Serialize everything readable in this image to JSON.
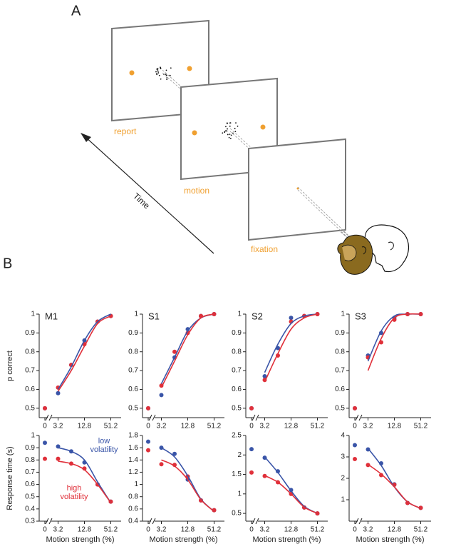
{
  "panels": {
    "a": "A",
    "b": "B"
  },
  "diagram": {
    "screens": [
      "report",
      "motion",
      "fixation"
    ],
    "time_label": "Time"
  },
  "chart_data": [
    {
      "type": "line",
      "title": "M1",
      "y_label": "p correct",
      "categories": [
        "0",
        "3.2",
        null,
        "12.8",
        null,
        "51.2"
      ],
      "ylim": [
        0.45,
        1.0
      ],
      "yticks": [
        0.5,
        0.6,
        0.7,
        0.8,
        0.9,
        1
      ],
      "series": [
        {
          "color": "#3a55a8",
          "mode": "markers",
          "values": [
            0.5,
            0.58,
            0.73,
            0.86,
            0.96,
            0.99
          ]
        },
        {
          "color": "#e0303a",
          "mode": "markers",
          "values": [
            0.5,
            0.61,
            0.73,
            0.84,
            0.96,
            0.99
          ]
        },
        {
          "color": "#3a55a8",
          "mode": "lines",
          "values": [
            null,
            0.6,
            0.72,
            0.86,
            0.96,
            1.0
          ]
        },
        {
          "color": "#e0303a",
          "mode": "lines",
          "values": [
            null,
            0.59,
            0.7,
            0.83,
            0.95,
            0.99
          ]
        }
      ]
    },
    {
      "type": "line",
      "title": "S1",
      "categories": [
        "0",
        "3.2",
        null,
        "12.8",
        null,
        "51.2"
      ],
      "ylim": [
        0.45,
        1.0
      ],
      "yticks": [
        0.5,
        0.6,
        0.7,
        0.8,
        0.9,
        1
      ],
      "series": [
        {
          "color": "#3a55a8",
          "mode": "markers",
          "values": [
            0.5,
            0.57,
            0.77,
            0.92,
            0.99,
            1.0
          ]
        },
        {
          "color": "#e0303a",
          "mode": "markers",
          "values": [
            0.5,
            0.62,
            0.8,
            0.9,
            0.99,
            1.0
          ]
        },
        {
          "color": "#3a55a8",
          "mode": "lines",
          "values": [
            null,
            0.63,
            0.77,
            0.91,
            0.98,
            1.0
          ]
        },
        {
          "color": "#e0303a",
          "mode": "lines",
          "values": [
            null,
            0.61,
            0.75,
            0.89,
            0.98,
            1.0
          ]
        }
      ]
    },
    {
      "type": "line",
      "title": "S2",
      "categories": [
        "0",
        "3.2",
        null,
        "12.8",
        null,
        "51.2"
      ],
      "ylim": [
        0.45,
        1.0
      ],
      "yticks": [
        0.5,
        0.6,
        0.7,
        0.8,
        0.9,
        1
      ],
      "series": [
        {
          "color": "#3a55a8",
          "mode": "markers",
          "values": [
            0.5,
            0.67,
            0.82,
            0.98,
            0.99,
            1.0
          ]
        },
        {
          "color": "#e0303a",
          "mode": "markers",
          "values": [
            0.5,
            0.65,
            0.78,
            0.96,
            0.99,
            1.0
          ]
        },
        {
          "color": "#3a55a8",
          "mode": "lines",
          "values": [
            null,
            0.69,
            0.84,
            0.95,
            0.99,
            1.0
          ]
        },
        {
          "color": "#e0303a",
          "mode": "lines",
          "values": [
            null,
            0.64,
            0.79,
            0.92,
            0.98,
            1.0
          ]
        }
      ]
    },
    {
      "type": "line",
      "title": "S3",
      "categories": [
        "0",
        "3.2",
        null,
        "12.8",
        null,
        "51.2"
      ],
      "ylim": [
        0.45,
        1.0
      ],
      "yticks": [
        0.5,
        0.6,
        0.7,
        0.8,
        0.9,
        1
      ],
      "series": [
        {
          "color": "#3a55a8",
          "mode": "markers",
          "values": [
            0.5,
            0.78,
            0.9,
            0.98,
            1.0,
            1.0
          ]
        },
        {
          "color": "#e0303a",
          "mode": "markers",
          "values": [
            0.5,
            0.77,
            0.85,
            0.97,
            1.0,
            1.0
          ]
        },
        {
          "color": "#3a55a8",
          "mode": "lines",
          "values": [
            null,
            0.75,
            0.91,
            0.99,
            1.0,
            1.0
          ]
        },
        {
          "color": "#e0303a",
          "mode": "lines",
          "values": [
            null,
            0.7,
            0.87,
            0.98,
            1.0,
            1.0
          ]
        }
      ]
    },
    {
      "type": "line",
      "y_label": "Response time (s)",
      "x_label": "Motion strength (%)",
      "categories": [
        "0",
        "3.2",
        null,
        "12.8",
        null,
        "51.2"
      ],
      "ylim": [
        0.3,
        1.0
      ],
      "yticks": [
        0.3,
        0.4,
        0.5,
        0.6,
        0.7,
        0.8,
        0.9,
        1
      ],
      "series": [
        {
          "name": "low volatility",
          "color": "#3a55a8",
          "mode": "markers",
          "values": [
            0.94,
            0.91,
            0.87,
            0.78,
            0.6,
            0.46
          ]
        },
        {
          "name": "high volatility",
          "color": "#e0303a",
          "mode": "markers",
          "values": [
            0.81,
            0.81,
            0.77,
            0.73,
            0.6,
            0.46
          ]
        },
        {
          "color": "#3a55a8",
          "mode": "lines",
          "values": [
            null,
            0.9,
            0.87,
            0.8,
            0.62,
            0.45
          ]
        },
        {
          "color": "#e0303a",
          "mode": "lines",
          "values": [
            null,
            0.79,
            0.77,
            0.72,
            0.6,
            0.45
          ]
        }
      ]
    },
    {
      "type": "line",
      "x_label": "Motion strength (%)",
      "categories": [
        "0",
        "3.2",
        null,
        "12.8",
        null,
        "51.2"
      ],
      "ylim": [
        0.4,
        1.8
      ],
      "yticks": [
        0.4,
        0.6,
        0.8,
        1,
        1.2,
        1.4,
        1.6,
        1.8
      ],
      "series": [
        {
          "color": "#3a55a8",
          "mode": "markers",
          "values": [
            1.7,
            1.6,
            1.5,
            1.08,
            0.74,
            0.58
          ]
        },
        {
          "color": "#e0303a",
          "mode": "markers",
          "values": [
            1.56,
            1.33,
            1.32,
            1.13,
            0.74,
            0.58
          ]
        },
        {
          "color": "#3a55a8",
          "mode": "lines",
          "values": [
            null,
            1.6,
            1.45,
            1.14,
            0.76,
            0.56
          ]
        },
        {
          "color": "#e0303a",
          "mode": "lines",
          "values": [
            null,
            1.4,
            1.3,
            1.08,
            0.75,
            0.56
          ]
        }
      ]
    },
    {
      "type": "line",
      "x_label": "Motion strength (%)",
      "categories": [
        "0",
        "3.2",
        null,
        "12.8",
        null,
        "51.2"
      ],
      "ylim": [
        0.3,
        2.5
      ],
      "yticks": [
        0.5,
        1,
        1.5,
        2,
        2.5
      ],
      "series": [
        {
          "color": "#3a55a8",
          "mode": "markers",
          "values": [
            2.15,
            1.93,
            1.58,
            1.1,
            0.65,
            0.5
          ]
        },
        {
          "color": "#e0303a",
          "mode": "markers",
          "values": [
            1.55,
            1.46,
            1.3,
            1.0,
            0.65,
            0.5
          ]
        },
        {
          "color": "#3a55a8",
          "mode": "lines",
          "values": [
            null,
            1.95,
            1.55,
            1.08,
            0.68,
            0.5
          ]
        },
        {
          "color": "#e0303a",
          "mode": "lines",
          "values": [
            null,
            1.47,
            1.3,
            1.0,
            0.66,
            0.5
          ]
        }
      ]
    },
    {
      "type": "line",
      "x_label": "Motion strength (%)",
      "categories": [
        "0",
        "3.2",
        null,
        "12.8",
        null,
        "51.2"
      ],
      "ylim": [
        0,
        4
      ],
      "yticks": [
        1,
        2,
        3,
        4
      ],
      "series": [
        {
          "color": "#3a55a8",
          "mode": "markers",
          "values": [
            3.55,
            3.35,
            2.7,
            1.72,
            0.85,
            0.62
          ]
        },
        {
          "color": "#e0303a",
          "mode": "markers",
          "values": [
            2.9,
            2.62,
            2.15,
            1.7,
            0.85,
            0.62
          ]
        },
        {
          "color": "#3a55a8",
          "mode": "lines",
          "values": [
            null,
            3.4,
            2.6,
            1.6,
            0.9,
            0.6
          ]
        },
        {
          "color": "#e0303a",
          "mode": "lines",
          "values": [
            null,
            2.65,
            2.2,
            1.6,
            0.9,
            0.6
          ]
        }
      ]
    }
  ]
}
